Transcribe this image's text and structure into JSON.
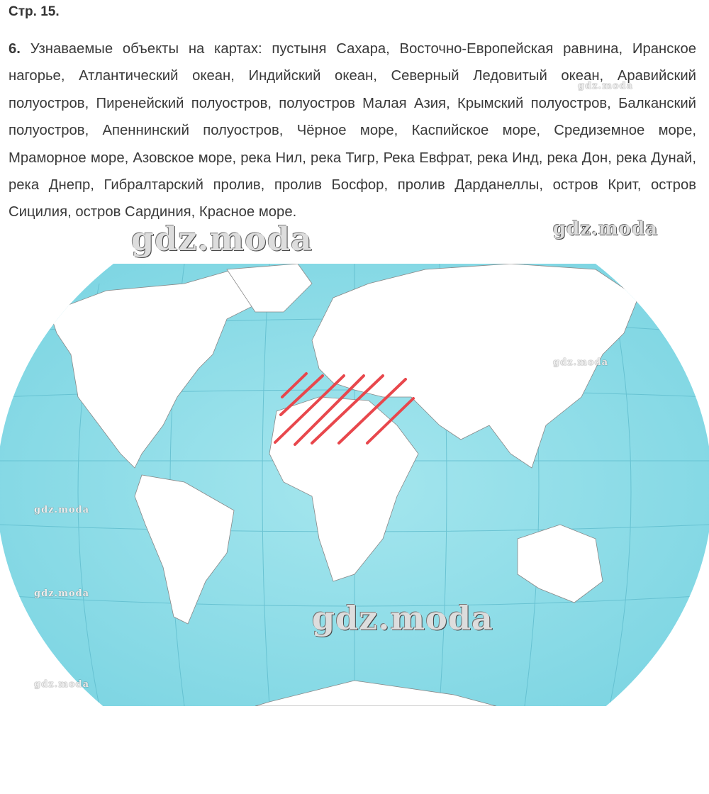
{
  "header": {
    "page_label": "Стр. 15."
  },
  "task": {
    "number": "6.",
    "text": "Узнаваемые объекты на картах: пустыня Сахара, Восточно-Европейская равнина, Иранское нагорье, Атлантический океан, Индийский океан, Северный Ледовитый океан, Аравийский полуостров, Пиренейский полуостров, полуостров Малая Азия, Крымский полуостров, Балканский полуостров, Апеннинский полуостров, Чёрное море, Каспийское море, Средиземное море, Мраморное море, Азовское море, река Нил, река Тигр, Река Евфрат, река Инд, река Дон, река Дунай, река Днепр, Гибралтарский пролив, пролив Босфор, пролив Дарданеллы, остров Крит, остров Сицилия, остров Сардиния, Красное море."
  },
  "map": {
    "ocean_color": "#8fdde8",
    "land_color": "#ffffff",
    "hatch_color": "#e8474c",
    "hatched_region": "Mediterranean / North Africa / Middle East"
  },
  "watermarks": [
    "gdz.moda",
    "gdz.moda",
    "gdz.moda",
    "gdz.moda",
    "gdz.moda",
    "gdz.moda",
    "gdz.moda",
    "gdz.moda"
  ]
}
